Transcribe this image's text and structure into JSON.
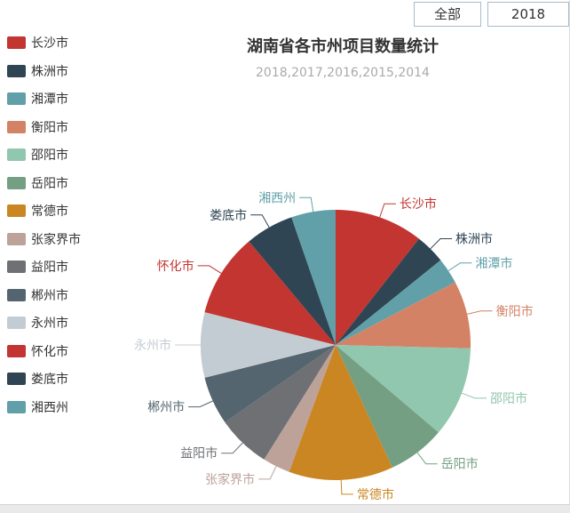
{
  "toolbar": {
    "all_button": "全部",
    "year_button": "2018"
  },
  "chart_data": {
    "type": "pie",
    "title": "湖南省各市州项目数量统计",
    "subtitle": "2018,2017,2016,2015,2014",
    "legend_position": "left",
    "categories": [
      "长沙市",
      "株洲市",
      "湘潭市",
      "衡阳市",
      "邵阳市",
      "岳阳市",
      "常德市",
      "张家界市",
      "益阳市",
      "郴州市",
      "永州市",
      "怀化市",
      "娄底市",
      "湘西州"
    ],
    "values": [
      10.6,
      3.6,
      3.1,
      8.1,
      10.8,
      6.9,
      12.5,
      3.3,
      6.4,
      5.8,
      7.8,
      10.0,
      5.8,
      5.3
    ],
    "values_unit": "percent-estimated",
    "colors": [
      "#c23531",
      "#2f4554",
      "#61a0a8",
      "#d48265",
      "#91c7ae",
      "#749f83",
      "#ca8622",
      "#bda29a",
      "#6e7074",
      "#546570",
      "#c4ccd3",
      "#c23531",
      "#2f4554",
      "#61a0a8"
    ]
  }
}
